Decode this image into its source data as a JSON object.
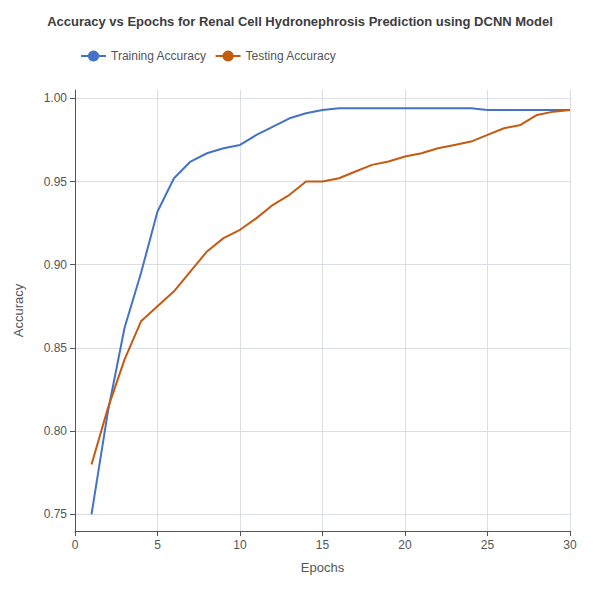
{
  "chart_data": {
    "type": "line",
    "title": "Accuracy vs Epochs for Renal Cell Hydronephrosis Prediction using DCNN Model",
    "xlabel": "Epochs",
    "ylabel": "Accuracy",
    "x": [
      1,
      2,
      3,
      4,
      5,
      6,
      7,
      8,
      9,
      10,
      11,
      12,
      13,
      14,
      15,
      16,
      17,
      18,
      19,
      20,
      21,
      22,
      23,
      24,
      25,
      26,
      27,
      28,
      29,
      30
    ],
    "series": [
      {
        "name": "Training Accuracy",
        "color": "#4472C4",
        "values": [
          0.75,
          0.812,
          0.862,
          0.895,
          0.932,
          0.952,
          0.962,
          0.967,
          0.97,
          0.972,
          0.978,
          0.983,
          0.988,
          0.991,
          0.993,
          0.994,
          0.994,
          0.994,
          0.994,
          0.994,
          0.994,
          0.994,
          0.994,
          0.994,
          0.993,
          0.993,
          0.993,
          0.993,
          0.993,
          0.993
        ]
      },
      {
        "name": "Testing Accuracy",
        "color": "#C55A11",
        "values": [
          0.78,
          0.814,
          0.843,
          0.866,
          0.875,
          0.884,
          0.896,
          0.908,
          0.916,
          0.921,
          0.928,
          0.936,
          0.942,
          0.95,
          0.95,
          0.952,
          0.956,
          0.96,
          0.962,
          0.965,
          0.967,
          0.97,
          0.972,
          0.974,
          0.978,
          0.982,
          0.984,
          0.99,
          0.992,
          0.993
        ]
      }
    ],
    "xlim": [
      0,
      30
    ],
    "ylim": [
      0.74,
      1.005
    ],
    "xticks": [
      0,
      5,
      10,
      15,
      20,
      25,
      30
    ],
    "yticks": [
      0.75,
      {
        "value": 0.8,
        "label": "0.80"
      },
      0.85,
      {
        "value": 0.9,
        "label": "0.90"
      },
      0.95,
      {
        "value": 1,
        "label": "1.00"
      }
    ],
    "grid": true,
    "legend": "upper left"
  }
}
